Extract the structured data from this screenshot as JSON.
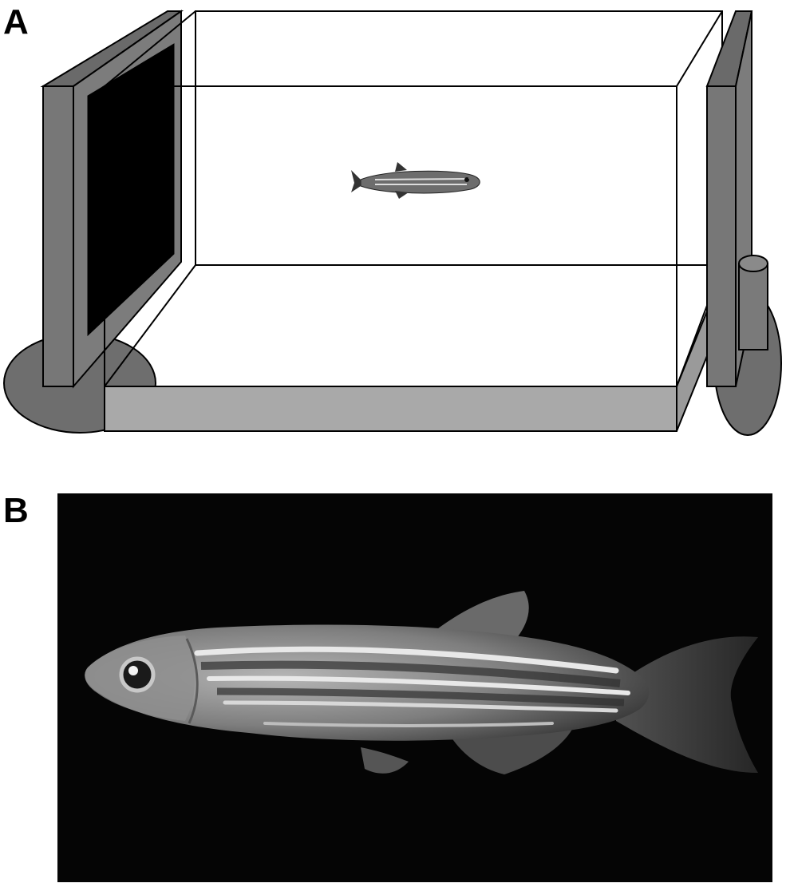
{
  "figure": {
    "panels": [
      {
        "label": "A",
        "kind": "diagram"
      },
      {
        "label": "B",
        "kind": "photograph"
      }
    ]
  },
  "colors": {
    "monitor_gray": "#777777",
    "monitor_base": "#6e6e6e",
    "screen": "#000000",
    "tank_base": "#a9a9a9",
    "photo_background": "#050505",
    "fish_stripe": "#e8e8e8",
    "fish_body": "#8a8a8a"
  },
  "icons": [
    "monitor-left",
    "monitor-right",
    "tank",
    "zebrafish"
  ]
}
